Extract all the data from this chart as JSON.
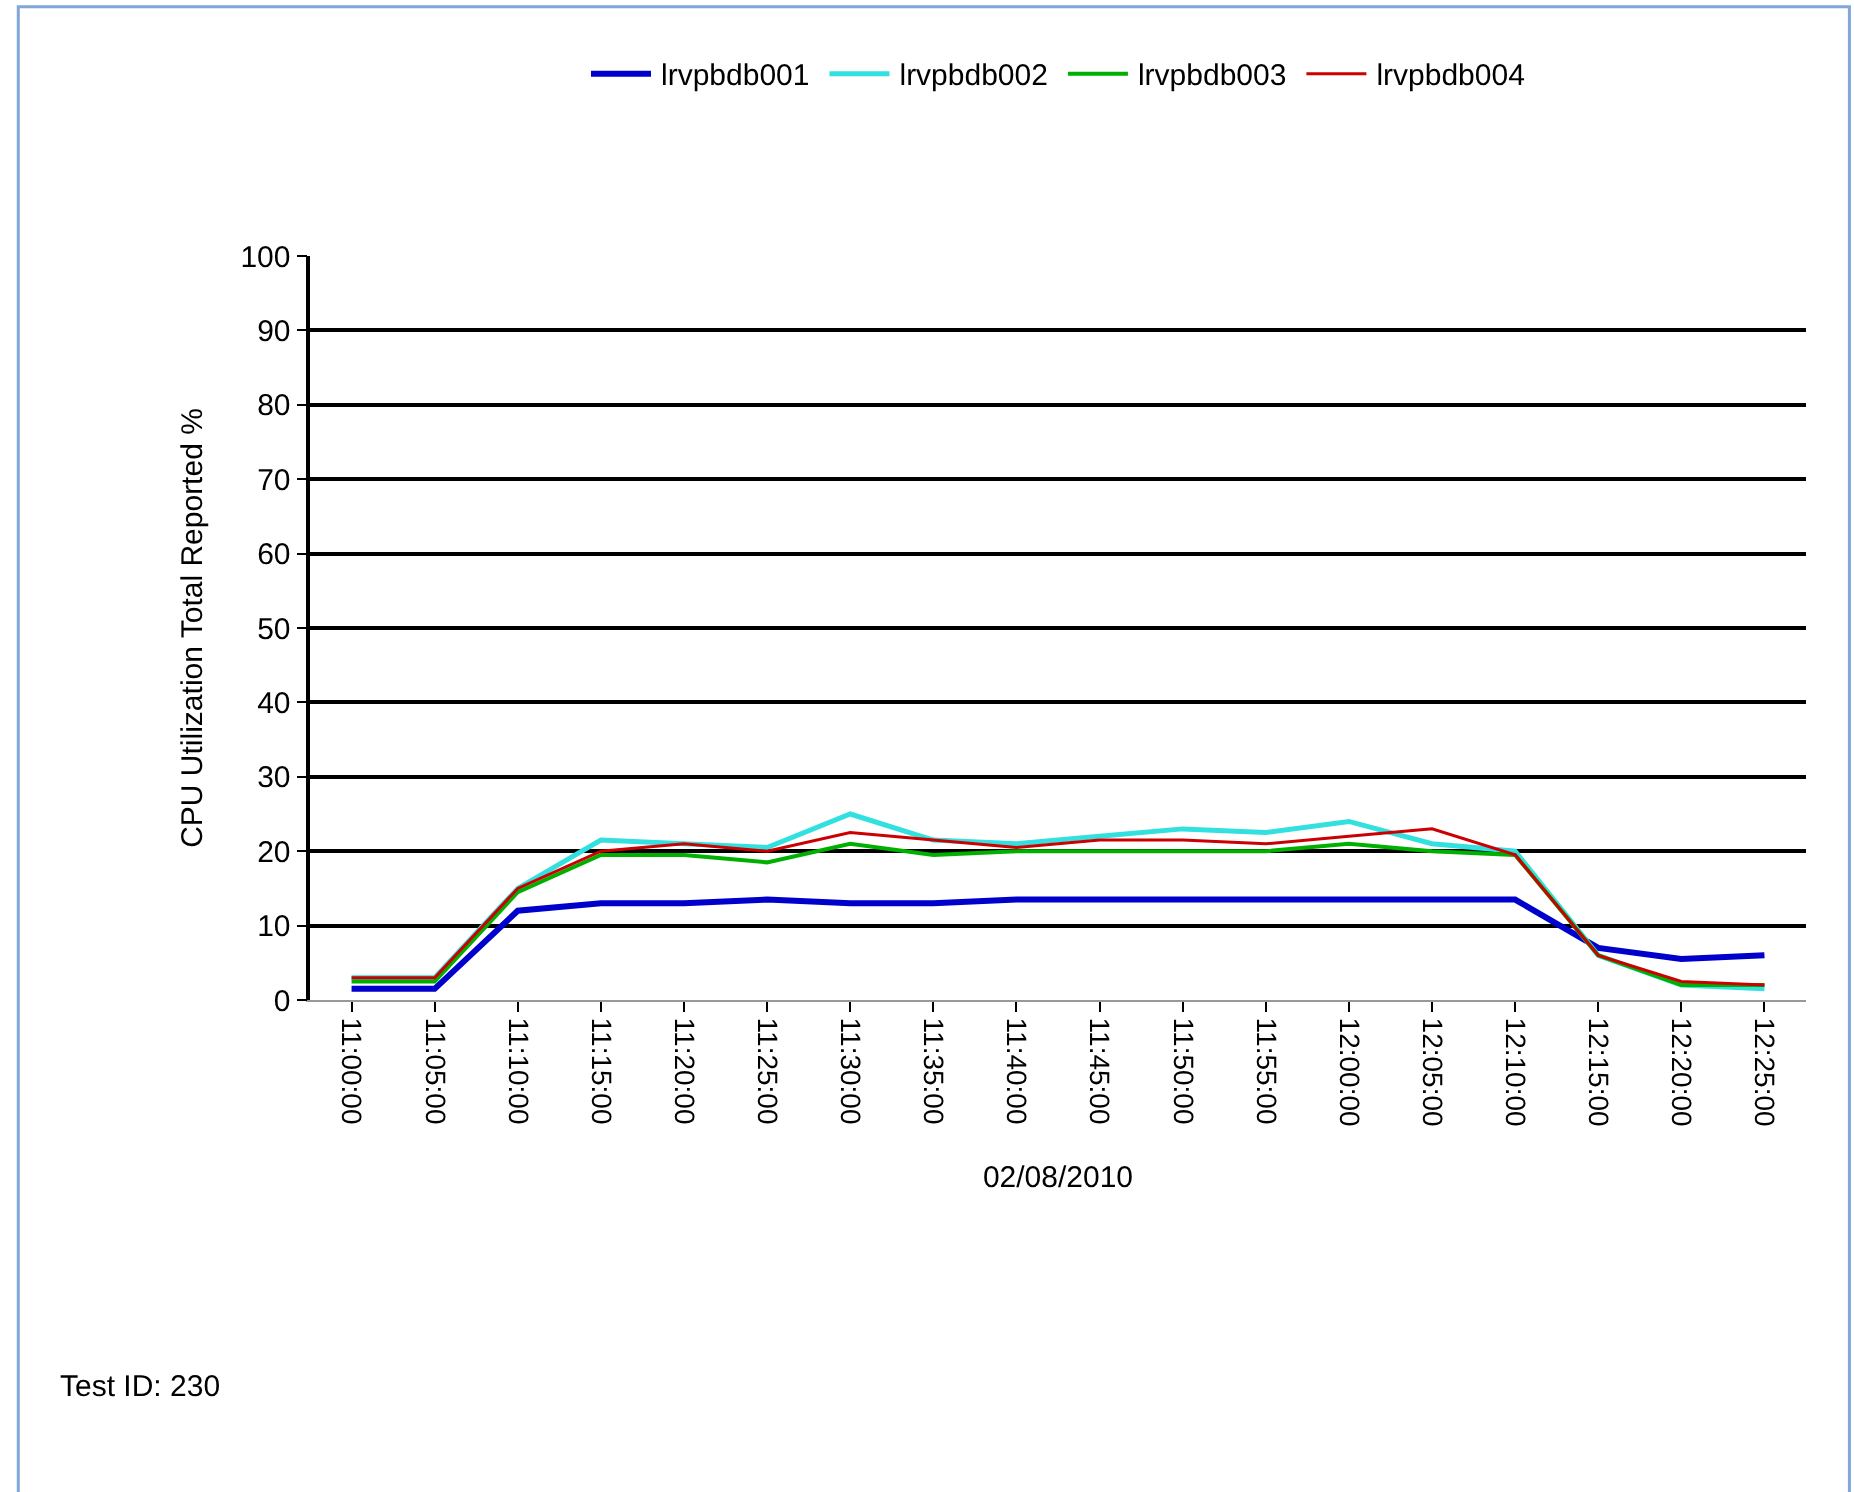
{
  "chart_data": {
    "type": "line",
    "xlabel": "02/08/2010",
    "ylabel": "CPU Utilization Total Reported %",
    "categories": [
      "11:00:00",
      "11:05:00",
      "11:10:00",
      "11:15:00",
      "11:20:00",
      "11:25:00",
      "11:30:00",
      "11:35:00",
      "11:40:00",
      "11:45:00",
      "11:50:00",
      "11:55:00",
      "12:00:00",
      "12:05:00",
      "12:10:00",
      "12:15:00",
      "12:20:00",
      "12:25:00"
    ],
    "series": [
      {
        "name": "lrvpbdb001",
        "color": "#0000cc",
        "values": [
          1.5,
          1.5,
          12,
          13,
          13,
          13.5,
          13,
          13,
          13.5,
          13.5,
          13.5,
          13.5,
          13.5,
          13.5,
          13.5,
          7,
          5.5,
          6
        ]
      },
      {
        "name": "lrvpbdb002",
        "color": "#33e0e0",
        "values": [
          3,
          3,
          15,
          21.5,
          21,
          20.5,
          25,
          21.5,
          21,
          22,
          23,
          22.5,
          24,
          21,
          20,
          6,
          2,
          1.5
        ]
      },
      {
        "name": "lrvpbdb003",
        "color": "#00b000",
        "values": [
          2.5,
          2.5,
          14.5,
          19.5,
          19.5,
          18.5,
          21,
          19.5,
          20,
          20,
          20,
          20,
          21,
          20,
          19.5,
          6,
          2,
          2
        ]
      },
      {
        "name": "lrvpbdb004",
        "color": "#cc0000",
        "values": [
          3,
          3,
          15,
          20,
          21,
          20,
          22.5,
          21.5,
          20.5,
          21.5,
          21.5,
          21,
          22,
          23,
          19.5,
          6,
          2.5,
          2
        ]
      }
    ],
    "ylim": [
      0,
      100
    ],
    "yticks": [
      0,
      10,
      20,
      30,
      40,
      50,
      60,
      70,
      80,
      90,
      100
    ],
    "grid": "y",
    "legend": "top",
    "marker": "none",
    "line_style": "solid",
    "annotations": [
      "Test ID: 230"
    ]
  }
}
